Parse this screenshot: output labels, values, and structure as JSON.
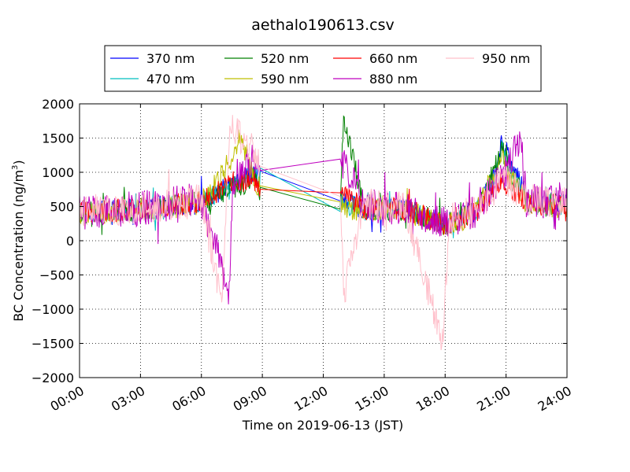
{
  "chart_data": {
    "type": "line",
    "title": "aethalo190613.csv",
    "xlabel": "Time on 2019-06-13 (JST)",
    "ylabel_main": "BC Concentration (ng/m",
    "ylabel_sup": "3",
    "ylabel_close": ")",
    "xlim": [
      0,
      24
    ],
    "ylim": [
      -2000,
      2000
    ],
    "x_unit": "hours (JST)",
    "x_ticks": [
      0,
      3,
      6,
      9,
      12,
      15,
      18,
      21,
      24
    ],
    "x_tick_labels": [
      "00:00",
      "03:00",
      "06:00",
      "09:00",
      "12:00",
      "15:00",
      "18:00",
      "21:00",
      "24:00"
    ],
    "y_ticks": [
      -2000,
      -1500,
      -1000,
      -500,
      0,
      500,
      1000,
      1500,
      2000
    ],
    "y_tick_labels": [
      "−2000",
      "−1500",
      "−1000",
      "−500",
      "0",
      "500",
      "1000",
      "1500",
      "2000"
    ],
    "grid": true,
    "legend_position": "top",
    "gap": [
      8.9,
      12.8
    ],
    "series": [
      {
        "name": "370 nm",
        "color": "#0000ff",
        "base": 460,
        "noise": 160,
        "anchors": [
          [
            0,
            420
          ],
          [
            3,
            470
          ],
          [
            5,
            540
          ],
          [
            6,
            570
          ],
          [
            7.5,
            820
          ],
          [
            8.6,
            1000
          ],
          [
            8.9,
            960
          ],
          [
            12.8,
            620
          ],
          [
            14,
            460
          ],
          [
            16,
            470
          ],
          [
            18,
            260
          ],
          [
            19.5,
            430
          ],
          [
            20.5,
            950
          ],
          [
            20.8,
            1450
          ],
          [
            21.3,
            1100
          ],
          [
            22,
            620
          ],
          [
            24,
            520
          ]
        ]
      },
      {
        "name": "470 nm",
        "color": "#00bfbf",
        "base": 450,
        "noise": 155,
        "anchors": [
          [
            0,
            410
          ],
          [
            3,
            460
          ],
          [
            5,
            520
          ],
          [
            6,
            560
          ],
          [
            7.5,
            800
          ],
          [
            8.6,
            960
          ],
          [
            8.9,
            920
          ],
          [
            12.8,
            560
          ],
          [
            14,
            450
          ],
          [
            16,
            460
          ],
          [
            18,
            240
          ],
          [
            19.5,
            420
          ],
          [
            20.5,
            900
          ],
          [
            20.8,
            1380
          ],
          [
            21.3,
            1000
          ],
          [
            22,
            600
          ],
          [
            24,
            510
          ]
        ]
      },
      {
        "name": "520 nm",
        "color": "#008000",
        "base": 440,
        "noise": 170,
        "anchors": [
          [
            0,
            400
          ],
          [
            3,
            450
          ],
          [
            5,
            520
          ],
          [
            6,
            560
          ],
          [
            7.5,
            780
          ],
          [
            8.6,
            900
          ],
          [
            8.9,
            700
          ],
          [
            12.8,
            320
          ],
          [
            13.0,
            1820
          ],
          [
            14,
            460
          ],
          [
            16,
            450
          ],
          [
            18,
            230
          ],
          [
            19.5,
            410
          ],
          [
            20.8,
            1320
          ],
          [
            21.3,
            950
          ],
          [
            22,
            580
          ],
          [
            24,
            500
          ]
        ]
      },
      {
        "name": "590 nm",
        "color": "#bfbf00",
        "base": 440,
        "noise": 175,
        "anchors": [
          [
            0,
            400
          ],
          [
            3,
            450
          ],
          [
            5,
            510
          ],
          [
            6,
            560
          ],
          [
            7.5,
            1200
          ],
          [
            7.9,
            1580
          ],
          [
            8.6,
            880
          ],
          [
            8.9,
            780
          ],
          [
            12.8,
            520
          ],
          [
            14,
            440
          ],
          [
            16,
            440
          ],
          [
            18,
            220
          ],
          [
            19.5,
            400
          ],
          [
            20.8,
            1250
          ],
          [
            21.3,
            900
          ],
          [
            22,
            560
          ],
          [
            24,
            480
          ]
        ]
      },
      {
        "name": "660 nm",
        "color": "#ff0000",
        "base": 460,
        "noise": 170,
        "anchors": [
          [
            0,
            420
          ],
          [
            3,
            460
          ],
          [
            5,
            530
          ],
          [
            6,
            580
          ],
          [
            7.5,
            860
          ],
          [
            8.6,
            900
          ],
          [
            8.9,
            760
          ],
          [
            12.8,
            720
          ],
          [
            14,
            470
          ],
          [
            16,
            460
          ],
          [
            18,
            240
          ],
          [
            19.5,
            420
          ],
          [
            20.8,
            880
          ],
          [
            21.3,
            760
          ],
          [
            22,
            560
          ],
          [
            24,
            500
          ]
        ]
      },
      {
        "name": "880 nm",
        "color": "#bf00bf",
        "base": 470,
        "noise": 260,
        "anchors": [
          [
            0,
            420
          ],
          [
            3,
            470
          ],
          [
            5,
            560
          ],
          [
            6,
            600
          ],
          [
            7.3,
            -700
          ],
          [
            7.6,
            900
          ],
          [
            8.6,
            1200
          ],
          [
            8.9,
            1100
          ],
          [
            12.8,
            1240
          ],
          [
            14,
            520
          ],
          [
            16,
            480
          ],
          [
            18,
            260
          ],
          [
            19.5,
            440
          ],
          [
            20.8,
            920
          ],
          [
            21.7,
            1500
          ],
          [
            22,
            600
          ],
          [
            24,
            520
          ]
        ]
      },
      {
        "name": "950 nm",
        "color": "#ffc0cb",
        "base": 480,
        "noise": 240,
        "anchors": [
          [
            0,
            430
          ],
          [
            3,
            480
          ],
          [
            5,
            560
          ],
          [
            6,
            620
          ],
          [
            7.0,
            -900
          ],
          [
            7.4,
            1680
          ],
          [
            8.6,
            1300
          ],
          [
            8.9,
            1100
          ],
          [
            12.8,
            1080
          ],
          [
            13.0,
            -800
          ],
          [
            14,
            520
          ],
          [
            16,
            480
          ],
          [
            17.9,
            -1480
          ],
          [
            18.2,
            300
          ],
          [
            19.5,
            440
          ],
          [
            20.8,
            900
          ],
          [
            22,
            620
          ],
          [
            24,
            540
          ]
        ]
      }
    ]
  }
}
